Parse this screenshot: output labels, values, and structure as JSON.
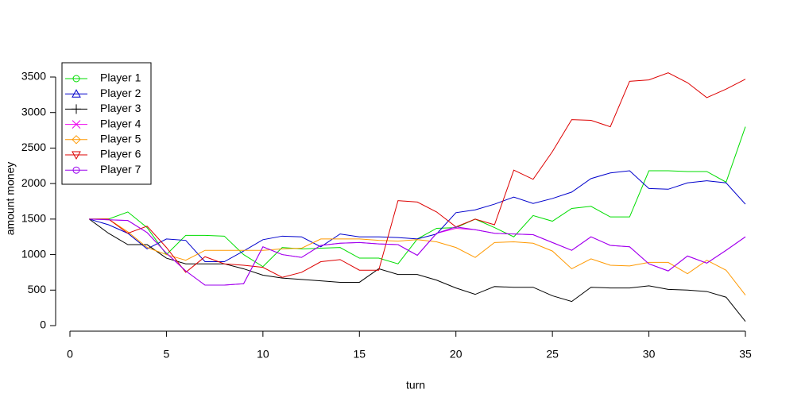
{
  "chart_data": {
    "type": "line",
    "x_label": "turn",
    "y_label": "amount money",
    "x": [
      1,
      2,
      3,
      4,
      5,
      6,
      7,
      8,
      9,
      10,
      11,
      12,
      13,
      14,
      15,
      16,
      17,
      18,
      19,
      20,
      21,
      22,
      23,
      24,
      25,
      26,
      27,
      28,
      29,
      30,
      31,
      32,
      33,
      34,
      35
    ],
    "xlim": [
      0,
      35
    ],
    "xticks": [
      0,
      5,
      10,
      15,
      20,
      25,
      30,
      35
    ],
    "ylim": [
      0,
      3500
    ],
    "yticks": [
      0,
      500,
      1000,
      1500,
      2000,
      2500,
      3000,
      3500
    ],
    "legend": "top-left",
    "series": [
      {
        "name": "Player 1",
        "color": "#00dd00",
        "marker": "circle",
        "values": [
          1500,
          1500,
          1600,
          1380,
          1000,
          1270,
          1270,
          1260,
          1000,
          830,
          1100,
          1080,
          1090,
          1100,
          950,
          950,
          870,
          1220,
          1370,
          1380,
          1500,
          1380,
          1250,
          1550,
          1470,
          1650,
          1680,
          1530,
          1530,
          2180,
          2180,
          2170,
          2170,
          2020,
          2800
        ]
      },
      {
        "name": "Player 2",
        "color": "#0000cc",
        "marker": "triangle",
        "values": [
          1500,
          1420,
          1300,
          1080,
          1220,
          1200,
          900,
          900,
          1050,
          1210,
          1260,
          1250,
          1110,
          1290,
          1250,
          1250,
          1240,
          1220,
          1290,
          1590,
          1630,
          1710,
          1810,
          1720,
          1790,
          1880,
          2070,
          2150,
          2180,
          1930,
          1920,
          2010,
          2040,
          2010,
          1710
        ]
      },
      {
        "name": "Player 3",
        "color": "#000000",
        "marker": "plus",
        "values": [
          1500,
          1300,
          1140,
          1140,
          950,
          870,
          870,
          870,
          800,
          710,
          670,
          650,
          630,
          610,
          610,
          800,
          720,
          720,
          640,
          530,
          440,
          550,
          540,
          540,
          420,
          340,
          540,
          530,
          530,
          560,
          510,
          500,
          480,
          400,
          60
        ]
      },
      {
        "name": "Player 4",
        "color": "#ee00ee",
        "marker": "cross",
        "values": [
          1500,
          1490,
          1480,
          1310,
          1020,
          770,
          570,
          570,
          590,
          1110,
          1000,
          960,
          1130,
          1160,
          1170,
          1150,
          1140,
          990,
          1300,
          1370,
          1350,
          1300,
          1290,
          1280,
          1170,
          1060,
          1250,
          1130,
          1110,
          870,
          770,
          980,
          880,
          1060,
          1250
        ]
      },
      {
        "name": "Player 5",
        "color": "#ff9900",
        "marker": "diamond",
        "values": [
          1500,
          1500,
          1320,
          1100,
          1000,
          920,
          1060,
          1060,
          1060,
          1060,
          1080,
          1090,
          1220,
          1220,
          1220,
          1200,
          1190,
          1210,
          1180,
          1100,
          960,
          1170,
          1180,
          1160,
          1050,
          800,
          940,
          850,
          840,
          890,
          890,
          730,
          920,
          780,
          430
        ]
      },
      {
        "name": "Player 6",
        "color": "#dd0000",
        "marker": "triangle-down",
        "values": [
          1500,
          1500,
          1300,
          1400,
          1100,
          750,
          970,
          870,
          850,
          820,
          680,
          750,
          900,
          930,
          780,
          780,
          1760,
          1740,
          1600,
          1390,
          1500,
          1420,
          2190,
          2060,
          2450,
          2900,
          2890,
          2800,
          3440,
          3460,
          3560,
          3420,
          3210,
          3330,
          3470
        ]
      },
      {
        "name": "Player 7",
        "color": "#9900ee",
        "marker": "circle",
        "values": [
          1500,
          1490,
          1480,
          1310,
          1020,
          770,
          570,
          570,
          590,
          1110,
          1000,
          960,
          1130,
          1160,
          1170,
          1150,
          1140,
          990,
          1300,
          1390,
          1350,
          1300,
          1290,
          1280,
          1170,
          1060,
          1250,
          1130,
          1110,
          870,
          770,
          980,
          880,
          1060,
          1250
        ]
      }
    ]
  }
}
